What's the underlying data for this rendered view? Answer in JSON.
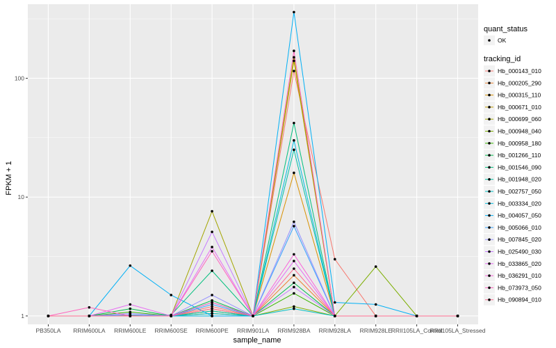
{
  "chart_data": {
    "type": "line",
    "xlabel": "sample_name",
    "ylabel": "FPKM + 1",
    "y_scale": "log",
    "ylim": [
      0.85,
      420
    ],
    "y_ticks": [
      1,
      10,
      100
    ],
    "y_tick_labels": [
      "1",
      "10",
      "100"
    ],
    "categories": [
      "PB350LA",
      "RRIM600LA",
      "RRIM600LE",
      "RRIM600SE",
      "RRIM600PE",
      "RRIM901LA",
      "RRIM928BA",
      "RRIM928LA",
      "RRIM928LE",
      "RRII105LA_Control",
      "RRII105LA_Stressed"
    ],
    "grid": true,
    "background": "#ebebeb",
    "legend": {
      "placement": "right",
      "quant_title": "quant_status",
      "quant_label": "OK",
      "series_title": "tracking_id"
    },
    "series": [
      {
        "name": "Hb_000143_010",
        "color": "#F8766D",
        "values": [
          1,
          1,
          1.02,
          1,
          1.2,
          1,
          115,
          3.0,
          1,
          1,
          1
        ]
      },
      {
        "name": "Hb_000205_290",
        "color": "#EA8331",
        "values": [
          1,
          1,
          1.01,
          1,
          1.15,
          1,
          2.2,
          1,
          1,
          1,
          1
        ]
      },
      {
        "name": "Hb_000315_110",
        "color": "#D89000",
        "values": [
          1,
          1,
          1,
          1,
          1.1,
          1,
          16,
          1,
          1,
          1,
          1
        ]
      },
      {
        "name": "Hb_000671_010",
        "color": "#C09B00",
        "values": [
          1,
          1,
          1,
          1,
          1.05,
          1,
          140,
          1,
          1,
          1,
          1
        ]
      },
      {
        "name": "Hb_000699_060",
        "color": "#A3A500",
        "values": [
          1,
          1,
          1,
          1,
          7.6,
          1,
          150,
          1,
          1,
          1,
          1
        ]
      },
      {
        "name": "Hb_000948_040",
        "color": "#7CAE00",
        "values": [
          1,
          1,
          1,
          1,
          1,
          1,
          1.2,
          1,
          2.6,
          1,
          1
        ]
      },
      {
        "name": "Hb_000958_180",
        "color": "#39B600",
        "values": [
          1,
          1,
          1.08,
          1,
          1.3,
          1,
          1.55,
          1,
          1,
          1,
          1
        ]
      },
      {
        "name": "Hb_001266_110",
        "color": "#00BB4E",
        "values": [
          1,
          1,
          1.15,
          1,
          1.35,
          1,
          1.9,
          1,
          1,
          1,
          1
        ]
      },
      {
        "name": "Hb_001546_090",
        "color": "#00BF7D",
        "values": [
          1,
          1,
          1,
          1.02,
          2.4,
          1,
          42,
          1,
          1,
          1,
          1
        ]
      },
      {
        "name": "Hb_001948_020",
        "color": "#00C1A3",
        "values": [
          1,
          1,
          1,
          1,
          1.1,
          1,
          25,
          1,
          1,
          1,
          1
        ]
      },
      {
        "name": "Hb_002757_050",
        "color": "#00BFC4",
        "values": [
          1,
          1,
          1,
          1,
          1.05,
          1,
          1.15,
          1,
          1,
          1,
          1
        ]
      },
      {
        "name": "Hb_003334_020",
        "color": "#00BAE0",
        "values": [
          1,
          1,
          1,
          1,
          1,
          1,
          30,
          1,
          1,
          1,
          1
        ]
      },
      {
        "name": "Hb_004057_050",
        "color": "#00B0F6",
        "values": [
          1,
          1,
          2.65,
          1.5,
          1,
          1,
          360,
          1.3,
          1.25,
          1,
          1
        ]
      },
      {
        "name": "Hb_005066_010",
        "color": "#35A2FF",
        "values": [
          1,
          1,
          1.02,
          1,
          1.25,
          1,
          5.7,
          1,
          1,
          1,
          1
        ]
      },
      {
        "name": "Hb_007845_020",
        "color": "#9590FF",
        "values": [
          1,
          1,
          1.05,
          1,
          1.5,
          1,
          6.2,
          1,
          1,
          1,
          1
        ]
      },
      {
        "name": "Hb_025490_030",
        "color": "#C77CFF",
        "values": [
          1,
          1,
          1,
          1,
          5.1,
          1,
          1.75,
          1,
          1,
          1,
          1
        ]
      },
      {
        "name": "Hb_033865_020",
        "color": "#E76BF3",
        "values": [
          1,
          1,
          1.25,
          1,
          3.8,
          1,
          2.9,
          1,
          1,
          1,
          1
        ]
      },
      {
        "name": "Hb_036291_010",
        "color": "#FA62DB",
        "values": [
          1,
          1,
          1,
          1,
          1.3,
          1,
          3.3,
          1,
          1,
          1,
          1
        ]
      },
      {
        "name": "Hb_073973_050",
        "color": "#FF62BC",
        "values": [
          1,
          1.18,
          1,
          1,
          3.5,
          1,
          170,
          1,
          1,
          1,
          1
        ]
      },
      {
        "name": "Hb_090894_010",
        "color": "#FF6C91",
        "values": [
          1,
          1,
          1,
          1,
          1.15,
          1,
          2.5,
          1,
          1,
          1,
          1
        ]
      }
    ]
  }
}
